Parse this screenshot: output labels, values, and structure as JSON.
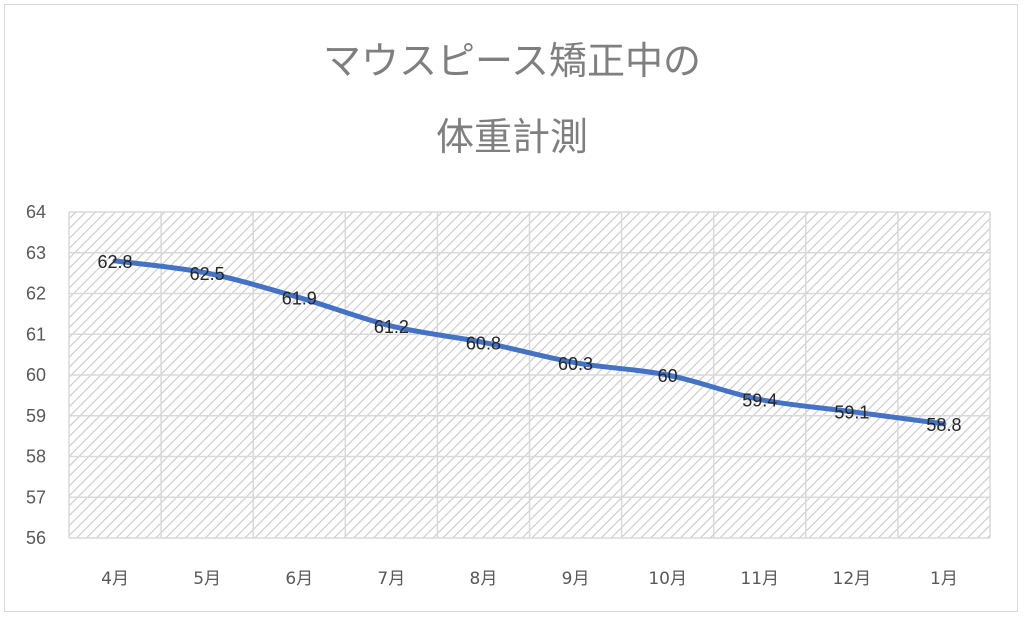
{
  "chart_data": {
    "type": "line",
    "title_line1": "マウスピース矯正中の",
    "title_line2": "体重計測",
    "categories": [
      "4月",
      "5月",
      "6月",
      "7月",
      "8月",
      "9月",
      "10月",
      "11月",
      "12月",
      "1月"
    ],
    "series": [
      {
        "values": [
          62.8,
          62.5,
          61.9,
          61.2,
          60.8,
          60.3,
          60,
          59.4,
          59.1,
          58.8
        ],
        "value_labels": [
          "62.8",
          "62.5",
          "61.9",
          "61.2",
          "60.8",
          "60.3",
          "60",
          "59.4",
          "59.1",
          "58.8"
        ],
        "color": "#4472c4"
      }
    ],
    "ylim": [
      56,
      64
    ],
    "yticks": [
      "56",
      "57",
      "58",
      "59",
      "60",
      "61",
      "62",
      "63",
      "64"
    ],
    "grid": true,
    "plot_background": "hatched",
    "xlabel": "",
    "ylabel": ""
  }
}
